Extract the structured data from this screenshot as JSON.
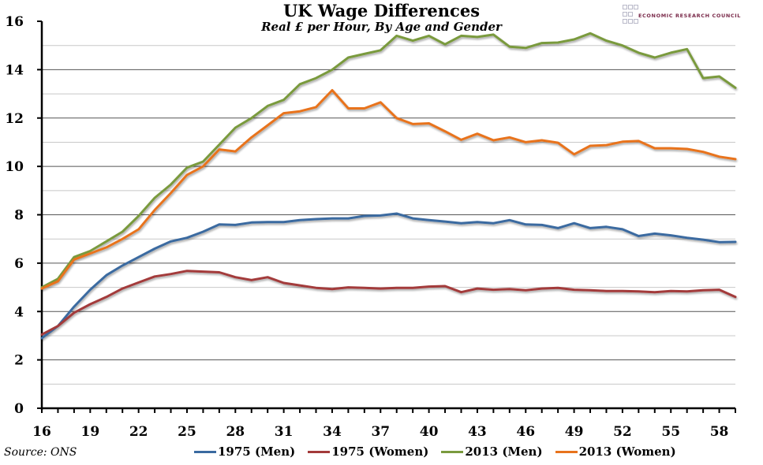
{
  "chart_data": {
    "type": "line",
    "title": "UK Wage Differences",
    "subtitle": "Real £ per Hour, By Age and Gender",
    "xlabel": "",
    "ylabel": "",
    "source": "Source: ONS",
    "logo_text": "ECONOMIC RESEARCH COUNCIL",
    "xlim": [
      16,
      59
    ],
    "ylim": [
      0,
      16
    ],
    "x_ticks": [
      16,
      19,
      22,
      25,
      28,
      31,
      34,
      37,
      40,
      43,
      46,
      49,
      52,
      55,
      58
    ],
    "x_tick_labels": [
      "16",
      "19",
      "22",
      "25",
      "28",
      "31",
      "34",
      "37",
      "40",
      "43",
      "46",
      "49",
      "52",
      "55",
      "58"
    ],
    "y_ticks": [
      0,
      2,
      4,
      6,
      8,
      10,
      12,
      14,
      16
    ],
    "y_tick_labels": [
      "0",
      "2",
      "4",
      "6",
      "8",
      "10",
      "12",
      "14",
      "16"
    ],
    "grid": true,
    "legend_position": "bottom",
    "x": [
      16,
      17,
      18,
      19,
      20,
      21,
      22,
      23,
      24,
      25,
      26,
      27,
      28,
      29,
      30,
      31,
      32,
      33,
      34,
      35,
      36,
      37,
      38,
      39,
      40,
      41,
      42,
      43,
      44,
      45,
      46,
      47,
      48,
      49,
      50,
      51,
      52,
      53,
      54,
      55,
      56,
      57,
      58,
      59
    ],
    "series": [
      {
        "name": "1975 (Men)",
        "color": "#3a6aa0",
        "values": [
          2.9,
          3.4,
          4.2,
          4.9,
          5.5,
          5.9,
          6.25,
          6.6,
          6.9,
          7.05,
          7.3,
          7.6,
          7.58,
          7.68,
          7.7,
          7.7,
          7.78,
          7.82,
          7.85,
          7.85,
          7.95,
          7.97,
          8.05,
          7.85,
          7.78,
          7.72,
          7.65,
          7.7,
          7.65,
          7.78,
          7.6,
          7.58,
          7.45,
          7.65,
          7.45,
          7.5,
          7.4,
          7.12,
          7.22,
          7.15,
          7.05,
          6.97,
          6.87,
          6.88
        ]
      },
      {
        "name": "1975 (Women)",
        "color": "#a33a3a",
        "values": [
          3.05,
          3.4,
          3.95,
          4.3,
          4.6,
          4.95,
          5.2,
          5.45,
          5.55,
          5.68,
          5.65,
          5.62,
          5.42,
          5.3,
          5.42,
          5.18,
          5.08,
          4.98,
          4.93,
          5.0,
          4.98,
          4.95,
          4.98,
          4.98,
          5.03,
          5.05,
          4.8,
          4.95,
          4.9,
          4.93,
          4.88,
          4.95,
          4.98,
          4.9,
          4.88,
          4.85,
          4.85,
          4.83,
          4.8,
          4.85,
          4.83,
          4.88,
          4.9,
          4.6
        ]
      },
      {
        "name": "2013 (Men)",
        "color": "#7a9a3e",
        "values": [
          5.0,
          5.35,
          6.25,
          6.5,
          6.9,
          7.3,
          7.95,
          8.7,
          9.25,
          9.95,
          10.2,
          10.9,
          11.6,
          12.0,
          12.5,
          12.75,
          13.4,
          13.65,
          14.0,
          14.5,
          14.65,
          14.8,
          15.4,
          15.2,
          15.4,
          15.05,
          15.4,
          15.35,
          15.45,
          14.95,
          14.9,
          15.1,
          15.12,
          15.25,
          15.5,
          15.2,
          15.0,
          14.7,
          14.5,
          14.7,
          14.85,
          13.65,
          13.72,
          13.25
        ]
      },
      {
        "name": "2013 (Women)",
        "color": "#e8731c",
        "values": [
          4.95,
          5.25,
          6.15,
          6.4,
          6.65,
          7.0,
          7.4,
          8.2,
          8.9,
          9.65,
          10.0,
          10.7,
          10.62,
          11.2,
          11.7,
          12.2,
          12.28,
          12.45,
          13.15,
          12.4,
          12.4,
          12.65,
          12.0,
          11.75,
          11.78,
          11.45,
          11.1,
          11.35,
          11.08,
          11.2,
          11.0,
          11.08,
          10.98,
          10.5,
          10.85,
          10.88,
          11.02,
          11.05,
          10.75,
          10.75,
          10.72,
          10.6,
          10.4,
          10.3
        ]
      }
    ]
  }
}
